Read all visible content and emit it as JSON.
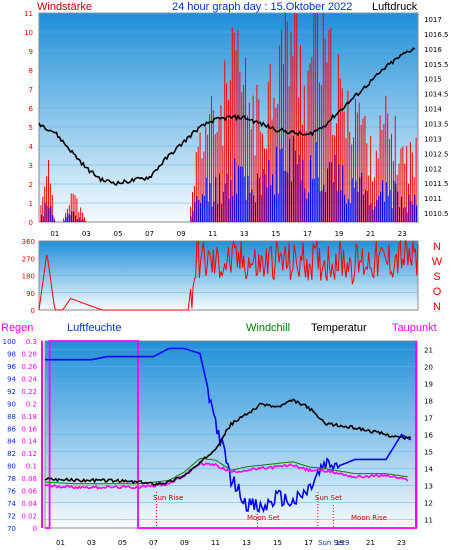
{
  "header": {
    "left_title": "Windstärke",
    "center_title": "24 hour graph day : 15.Oktober 2022",
    "right_title": "Luftdruck"
  },
  "colors": {
    "panel_top": "#1f8fd8",
    "panel_bottom": "#f7fbfe",
    "red": "#ff0000",
    "blue": "#0000ff",
    "black": "#000000",
    "magenta": "#ff00ff",
    "title_red": "#cc0000",
    "title_blue": "#0033cc",
    "title_green": "#008000"
  },
  "x_ticks": [
    "01",
    "03",
    "05",
    "07",
    "09",
    "11",
    "13",
    "15",
    "17",
    "19",
    "21",
    "23"
  ],
  "wind_chart": {
    "left_ticks": [
      "0",
      "1",
      "2",
      "3",
      "4",
      "5",
      "6",
      "7",
      "8",
      "9",
      "10",
      "11"
    ],
    "right_ticks": [
      "1010.5",
      "1011",
      "1011.5",
      "1012",
      "1012.5",
      "1013",
      "1013.5",
      "1014",
      "1014.5",
      "1015",
      "1015.5",
      "1016",
      "1016.5",
      "1017"
    ]
  },
  "dir_chart": {
    "ticks": [
      "0",
      "90",
      "180",
      "270",
      "360"
    ],
    "compass": [
      "N",
      "W",
      "S",
      "O",
      "N"
    ]
  },
  "bottom_chart": {
    "legend": {
      "rain": "Regen",
      "humidity": "Luftfeuchte",
      "windchill": "Windchill",
      "temperature": "Temperatur",
      "dewpoint": "Taupunkt"
    },
    "hum_ticks": [
      "70",
      "72",
      "74",
      "76",
      "78",
      "80",
      "82",
      "84",
      "86",
      "88",
      "90",
      "92",
      "94",
      "96",
      "98",
      "100"
    ],
    "rain_ticks": [
      "0",
      "0.02",
      "0.04",
      "0.06",
      "0.08",
      "0.1",
      "0.12",
      "0.14",
      "0.16",
      "0.18",
      "0.2",
      "0.22",
      "0.24",
      "0.26",
      "0.28",
      "0.3"
    ],
    "temp_ticks": [
      "11",
      "12",
      "13",
      "14",
      "15",
      "16",
      "17",
      "18",
      "19",
      "20",
      "21"
    ],
    "events": {
      "sun_rise": "Sun Rise",
      "sun_set": "Sun Set",
      "moon_set": "Moon Set",
      "moon_rise": "Moon Rise",
      "axis_overlay": "Sun Set9"
    }
  },
  "chart_data": [
    {
      "type": "line",
      "title": "24 hour graph day : 15.Oktober 2022",
      "x_unit": "hour",
      "series": [
        {
          "name": "Windstärke",
          "axis": "left",
          "ylim": [
            0,
            11
          ],
          "x": [
            0,
            0.5,
            1,
            1.5,
            2,
            3,
            4,
            5,
            6,
            7,
            8,
            9,
            9.5,
            10,
            10.5,
            11,
            12,
            12.5,
            13,
            14,
            15,
            16,
            17,
            17.5,
            18,
            19,
            19.5,
            20,
            21,
            22,
            23,
            23.5
          ],
          "values": [
            0,
            2,
            0,
            0,
            1,
            0,
            0,
            0,
            0,
            0,
            0,
            0,
            0,
            2,
            3,
            3,
            4,
            5,
            4,
            3,
            5,
            6,
            4,
            7,
            5,
            4,
            3,
            4,
            2,
            3,
            2,
            2
          ]
        },
        {
          "name": "Luftdruck",
          "axis": "right",
          "ylim": [
            1010.2,
            1017.2
          ],
          "x": [
            0,
            1,
            2,
            3,
            4,
            5,
            6,
            7,
            8,
            9,
            10,
            11,
            12,
            13,
            14,
            15,
            16,
            17,
            18,
            19,
            20,
            21,
            22,
            23,
            24
          ],
          "values": [
            1013.5,
            1013.2,
            1012.6,
            1012.0,
            1011.6,
            1011.5,
            1011.6,
            1011.7,
            1012.3,
            1012.8,
            1013.3,
            1013.6,
            1013.7,
            1013.7,
            1013.5,
            1013.3,
            1013.2,
            1013.1,
            1013.4,
            1013.9,
            1014.4,
            1014.9,
            1015.4,
            1015.8,
            1016.1
          ]
        }
      ]
    },
    {
      "type": "line",
      "series": [
        {
          "name": "Windrichtung",
          "ylim": [
            0,
            360
          ],
          "x": [
            0,
            0.5,
            1,
            1.5,
            2,
            3,
            4,
            5,
            6,
            7,
            8,
            9,
            9.5,
            10,
            11,
            12,
            13,
            14,
            15,
            16,
            17,
            18,
            19,
            20,
            21,
            22,
            23,
            24
          ],
          "values": [
            0,
            300,
            0,
            0,
            60,
            30,
            0,
            0,
            0,
            0,
            0,
            0,
            0,
            270,
            240,
            250,
            260,
            230,
            270,
            240,
            260,
            250,
            270,
            240,
            260,
            250,
            280,
            260
          ]
        }
      ]
    },
    {
      "type": "line",
      "series": [
        {
          "name": "Regen",
          "axis": "rain",
          "ylim": [
            0,
            0.3
          ],
          "x": [
            0,
            0.3,
            0.3,
            6,
            6,
            24
          ],
          "values": [
            0,
            0,
            0.3,
            0.3,
            0,
            0
          ]
        },
        {
          "name": "Luftfeuchte",
          "axis": "humidity",
          "ylim": [
            70,
            100
          ],
          "x": [
            0,
            1,
            2,
            3,
            4,
            5,
            6,
            7,
            8,
            9,
            10,
            11,
            12,
            13,
            14,
            15,
            16,
            17,
            18,
            19,
            20,
            21,
            22,
            23,
            23.7
          ],
          "values": [
            97,
            97,
            97,
            97,
            97.5,
            97.5,
            97.5,
            97.5,
            98.8,
            98.8,
            98,
            87,
            78,
            74,
            73,
            75,
            74,
            76,
            80,
            80,
            81,
            81,
            81,
            85,
            84
          ]
        },
        {
          "name": "Windchill",
          "axis": "temp",
          "ylim": [
            10.5,
            21.5
          ],
          "x": [
            0,
            2,
            4,
            6,
            8,
            9,
            10,
            11,
            12,
            13,
            14,
            15,
            16,
            17,
            18,
            20,
            22,
            23.5
          ],
          "values": [
            13.2,
            13.1,
            13.1,
            13.1,
            13.3,
            13.8,
            14.6,
            14.5,
            13.9,
            14.1,
            14.2,
            14.3,
            14.4,
            14.1,
            14.0,
            13.7,
            13.7,
            13.5
          ]
        },
        {
          "name": "Temperatur",
          "axis": "temp",
          "ylim": [
            10.5,
            21.5
          ],
          "x": [
            0,
            2,
            4,
            6,
            7,
            8,
            9,
            10,
            11,
            12,
            13,
            14,
            15,
            16,
            17,
            18,
            19,
            20,
            21,
            22,
            23,
            23.7
          ],
          "values": [
            13.4,
            13.3,
            13.3,
            13.2,
            13.1,
            13.2,
            13.6,
            14.3,
            15.2,
            16.6,
            17.2,
            17.8,
            17.6,
            18.0,
            17.6,
            16.7,
            16.5,
            16.4,
            16.2,
            16.0,
            15.8,
            15.8
          ]
        },
        {
          "name": "Taupunkt",
          "axis": "temp",
          "ylim": [
            10.5,
            21.5
          ],
          "x": [
            0,
            2,
            4,
            6,
            8,
            9,
            10,
            11,
            12,
            13,
            14,
            15,
            16,
            17,
            18,
            20,
            22,
            23.5
          ],
          "values": [
            13.0,
            12.9,
            12.9,
            12.9,
            13.1,
            13.6,
            14.3,
            14.2,
            13.8,
            13.9,
            14.0,
            14.1,
            14.2,
            13.9,
            13.9,
            13.5,
            13.6,
            13.3
          ]
        }
      ]
    }
  ]
}
